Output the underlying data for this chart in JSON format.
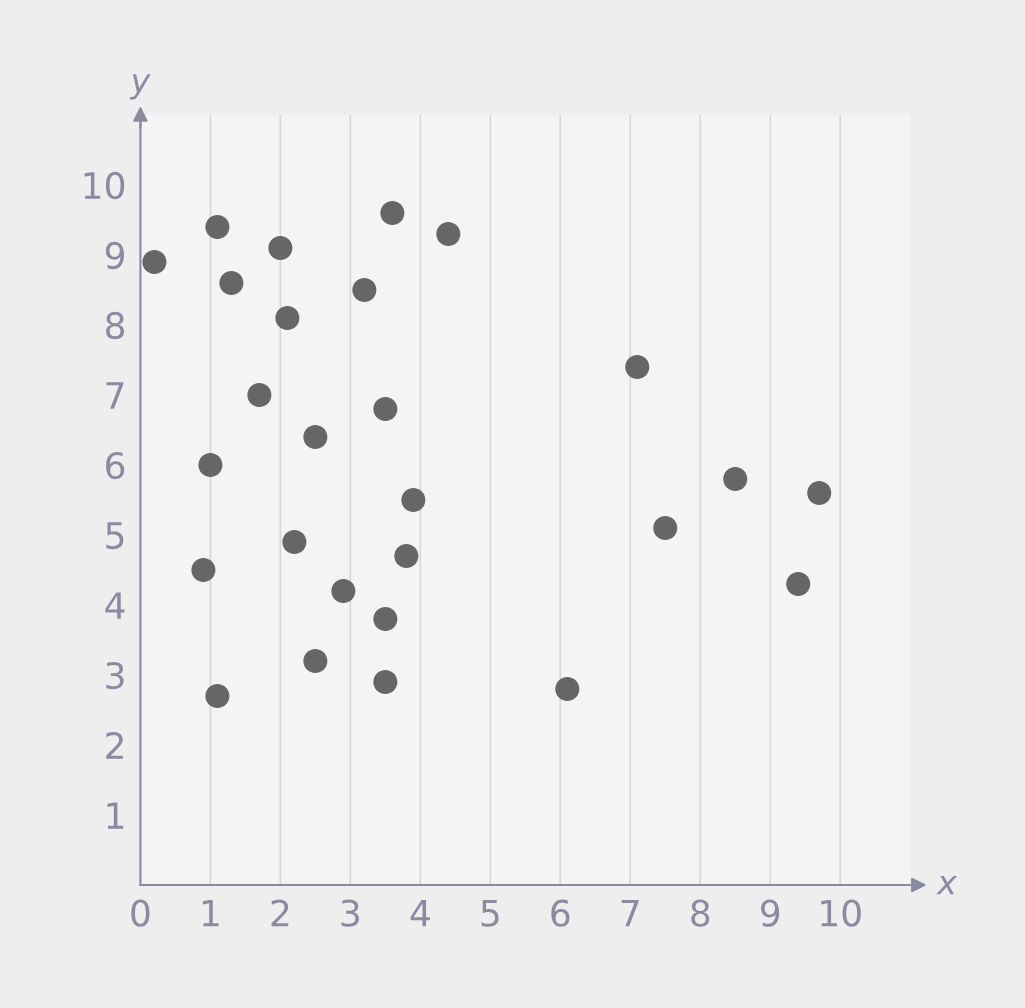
{
  "chart_data": {
    "type": "scatter",
    "xlabel": "x",
    "ylabel": "y",
    "x": [
      0.2,
      1.1,
      1.3,
      2.0,
      2.1,
      1.7,
      1.0,
      0.9,
      1.1,
      2.5,
      2.2,
      2.9,
      2.5,
      3.5,
      3.5,
      3.8,
      3.9,
      3.5,
      3.2,
      3.6,
      4.4,
      6.1,
      7.1,
      7.5,
      8.5,
      9.7,
      9.4
    ],
    "series": [
      {
        "color": "#666666",
        "values": [
          8.9,
          9.4,
          8.6,
          9.1,
          8.1,
          7.0,
          6.0,
          4.5,
          2.7,
          6.4,
          4.9,
          4.2,
          3.2,
          2.9,
          3.8,
          4.7,
          5.5,
          6.8,
          8.5,
          9.6,
          9.3,
          2.8,
          7.4,
          5.1,
          5.8,
          5.6,
          4.3
        ]
      }
    ],
    "xlim": [
      0,
      11
    ],
    "ylim": [
      0,
      11
    ],
    "xticks": [
      0,
      1,
      2,
      3,
      4,
      5,
      6,
      7,
      8,
      9,
      10
    ],
    "yticks": [
      1,
      2,
      3,
      4,
      5,
      6,
      7,
      8,
      9,
      10
    ],
    "grid": "x",
    "marker": "circle"
  }
}
